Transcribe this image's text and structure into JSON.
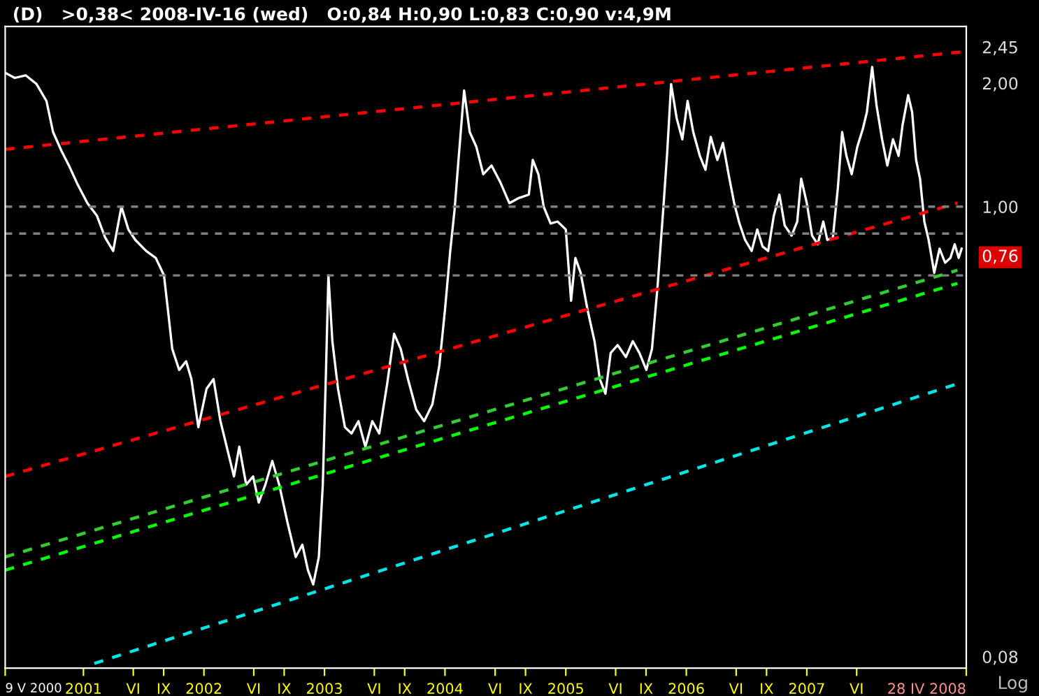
{
  "chart_data": {
    "type": "line",
    "title": "(D)   >0,38< 2008-IV-16 (wed)   O:0,84 H:0,90 L:0,83 C:0,90 v:4,9M",
    "log": true,
    "xlim": [
      "2000-05-09",
      "2008-04-28"
    ],
    "ylim": [
      0.075,
      2.75
    ],
    "xticks": [
      {
        "value": "2000-05-09",
        "label": "9 V 2000"
      },
      {
        "value": "2001-01-01",
        "label": "2001"
      },
      {
        "value": "2001-06-01",
        "label": "VI"
      },
      {
        "value": "2001-09-01",
        "label": "IX"
      },
      {
        "value": "2002-01-01",
        "label": "2002"
      },
      {
        "value": "2002-06-01",
        "label": "VI"
      },
      {
        "value": "2002-09-01",
        "label": "IX"
      },
      {
        "value": "2003-01-01",
        "label": "2003"
      },
      {
        "value": "2003-06-01",
        "label": "VI"
      },
      {
        "value": "2003-09-01",
        "label": "IX"
      },
      {
        "value": "2004-01-01",
        "label": "2004"
      },
      {
        "value": "2004-06-01",
        "label": "VI"
      },
      {
        "value": "2004-09-01",
        "label": "IX"
      },
      {
        "value": "2005-01-01",
        "label": "2005"
      },
      {
        "value": "2005-06-01",
        "label": "VI"
      },
      {
        "value": "2005-09-01",
        "label": "IX"
      },
      {
        "value": "2006-01-01",
        "label": "2006"
      },
      {
        "value": "2006-06-01",
        "label": "VI"
      },
      {
        "value": "2006-09-01",
        "label": "IX"
      },
      {
        "value": "2007-01-01",
        "label": "2007"
      },
      {
        "value": "2007-06-01",
        "label": "VI"
      },
      {
        "value": "2008-04-28",
        "label": "28 IV 2008"
      }
    ],
    "yticks": [
      {
        "value": 0.08,
        "label": "0,08"
      },
      {
        "value": 0.76,
        "label": "0,76"
      },
      {
        "value": 1.0,
        "label": "1,00"
      },
      {
        "value": 2.0,
        "label": "2,00"
      },
      {
        "value": 2.45,
        "label": "2,45"
      }
    ],
    "ref_lines": [
      {
        "axis": "y",
        "value": 1.0,
        "color": "#808080",
        "line_style": "dashed"
      },
      {
        "axis": "y",
        "value": 0.86,
        "color": "#808080",
        "line_style": "dashed"
      },
      {
        "axis": "y",
        "value": 0.68,
        "color": "#808080",
        "line_style": "dashed"
      }
    ],
    "annotations": [
      "Log"
    ],
    "series": [
      {
        "color": "#ffffff",
        "line_style": "solid",
        "x": [
          "2000-05-09",
          "2000-06-07",
          "2000-07-10",
          "2000-08-12",
          "2000-09-11",
          "2000-10-01",
          "2000-10-26",
          "2000-11-20",
          "2000-12-15",
          "2001-01-13",
          "2001-02-11",
          "2001-03-08",
          "2001-04-01",
          "2001-04-26",
          "2001-05-17",
          "2001-06-07",
          "2001-07-10",
          "2001-08-08",
          "2001-09-02",
          "2001-09-15",
          "2001-09-27",
          "2001-10-18",
          "2001-11-08",
          "2001-11-24",
          "2001-12-15",
          "2002-01-09",
          "2002-01-30",
          "2002-02-20",
          "2002-03-16",
          "2002-04-02",
          "2002-04-18",
          "2002-05-09",
          "2002-05-30",
          "2002-06-16",
          "2002-07-06",
          "2002-07-27",
          "2002-08-17",
          "2002-09-11",
          "2002-10-06",
          "2002-10-26",
          "2002-11-12",
          "2002-11-28",
          "2002-12-15",
          "2002-12-27",
          "2003-01-05",
          "2003-01-13",
          "2003-01-25",
          "2003-02-11",
          "2003-03-04",
          "2003-03-24",
          "2003-04-14",
          "2003-05-05",
          "2003-05-26",
          "2003-06-16",
          "2003-07-10",
          "2003-07-31",
          "2003-08-20",
          "2003-09-11",
          "2003-10-06",
          "2003-10-30",
          "2003-11-24",
          "2003-12-15",
          "2004-01-01",
          "2004-01-17",
          "2004-01-30",
          "2004-02-11",
          "2004-02-28",
          "2004-03-16",
          "2004-04-05",
          "2004-04-26",
          "2004-05-21",
          "2004-06-16",
          "2004-07-14",
          "2004-08-12",
          "2004-09-11",
          "2004-09-23",
          "2004-10-10",
          "2004-10-26",
          "2004-11-16",
          "2004-12-07",
          "2005-01-01",
          "2005-01-17",
          "2005-01-30",
          "2005-02-15",
          "2005-03-08",
          "2005-03-29",
          "2005-04-14",
          "2005-05-01",
          "2005-05-17",
          "2005-06-07",
          "2005-07-02",
          "2005-07-23",
          "2005-08-12",
          "2005-09-02",
          "2005-09-19",
          "2005-10-06",
          "2005-10-23",
          "2005-11-04",
          "2005-11-16",
          "2005-12-03",
          "2005-12-20",
          "2006-01-05",
          "2006-01-22",
          "2006-02-11",
          "2006-02-28",
          "2006-03-16",
          "2006-04-05",
          "2006-04-22",
          "2006-05-09",
          "2006-05-26",
          "2006-06-11",
          "2006-06-28",
          "2006-07-18",
          "2006-08-04",
          "2006-08-20",
          "2006-09-06",
          "2006-09-23",
          "2006-10-10",
          "2006-10-26",
          "2006-11-16",
          "2006-12-03",
          "2006-12-15",
          "2007-01-01",
          "2007-01-17",
          "2007-02-03",
          "2007-02-20",
          "2007-03-04",
          "2007-03-21",
          "2007-04-05",
          "2007-04-18",
          "2007-05-01",
          "2007-05-17",
          "2007-06-03",
          "2007-06-20",
          "2007-07-02",
          "2007-07-18",
          "2007-07-31",
          "2007-08-17",
          "2007-09-02",
          "2007-09-19",
          "2007-10-06",
          "2007-10-18",
          "2007-11-04",
          "2007-11-16",
          "2007-11-28",
          "2007-12-10",
          "2007-12-23",
          "2008-01-05",
          "2008-01-22",
          "2008-02-07",
          "2008-02-24",
          "2008-03-11",
          "2008-03-24",
          "2008-04-05",
          "2008-04-14"
        ],
        "values": [
          2.12,
          2.06,
          2.09,
          1.99,
          1.81,
          1.52,
          1.37,
          1.25,
          1.13,
          1.02,
          0.95,
          0.84,
          0.78,
          1.0,
          0.88,
          0.83,
          0.78,
          0.75,
          0.68,
          0.55,
          0.45,
          0.4,
          0.42,
          0.38,
          0.29,
          0.36,
          0.38,
          0.3,
          0.25,
          0.22,
          0.26,
          0.21,
          0.22,
          0.19,
          0.21,
          0.24,
          0.21,
          0.17,
          0.14,
          0.15,
          0.13,
          0.12,
          0.14,
          0.21,
          0.38,
          0.68,
          0.47,
          0.36,
          0.29,
          0.28,
          0.3,
          0.26,
          0.3,
          0.28,
          0.37,
          0.49,
          0.45,
          0.38,
          0.32,
          0.3,
          0.33,
          0.41,
          0.56,
          0.78,
          0.98,
          1.3,
          1.92,
          1.52,
          1.4,
          1.2,
          1.26,
          1.15,
          1.02,
          1.05,
          1.07,
          1.3,
          1.2,
          1.0,
          0.91,
          0.92,
          0.88,
          0.59,
          0.75,
          0.69,
          0.56,
          0.47,
          0.38,
          0.35,
          0.44,
          0.46,
          0.43,
          0.47,
          0.44,
          0.4,
          0.45,
          0.64,
          0.98,
          1.35,
          1.99,
          1.64,
          1.46,
          1.81,
          1.52,
          1.33,
          1.23,
          1.48,
          1.3,
          1.43,
          1.2,
          1.02,
          0.91,
          0.83,
          0.78,
          0.88,
          0.8,
          0.78,
          0.95,
          1.07,
          0.9,
          0.85,
          0.92,
          1.17,
          1.02,
          0.85,
          0.81,
          0.92,
          0.83,
          0.84,
          1.11,
          1.52,
          1.33,
          1.2,
          1.4,
          1.55,
          1.7,
          2.19,
          1.77,
          1.46,
          1.26,
          1.46,
          1.33,
          1.58,
          1.87,
          1.7,
          1.3,
          1.17,
          0.92,
          0.83,
          0.69,
          0.79,
          0.73,
          0.75,
          0.81,
          0.75,
          0.79
        ]
      },
      {
        "color": "#ff0000",
        "line_style": "dashed",
        "x": [
          "2000-05-09",
          "2008-04-28"
        ],
        "values": [
          1.38,
          2.39
        ]
      },
      {
        "color": "#ff0000",
        "line_style": "dashed",
        "x": [
          "2000-05-09",
          "2008-04-01"
        ],
        "values": [
          0.22,
          1.02
        ]
      },
      {
        "color": "#33cc33",
        "line_style": "dashed",
        "x": [
          "2000-05-09",
          "2008-04-01"
        ],
        "values": [
          0.14,
          0.7
        ]
      },
      {
        "color": "#00ff00",
        "line_style": "dashed",
        "x": [
          "2000-05-09",
          "2008-04-01"
        ],
        "values": [
          0.13,
          0.65
        ]
      },
      {
        "color": "#00e5e5",
        "line_style": "dashed",
        "x": [
          "2001-02-03",
          "2008-04-01"
        ],
        "values": [
          0.077,
          0.37
        ]
      }
    ]
  }
}
